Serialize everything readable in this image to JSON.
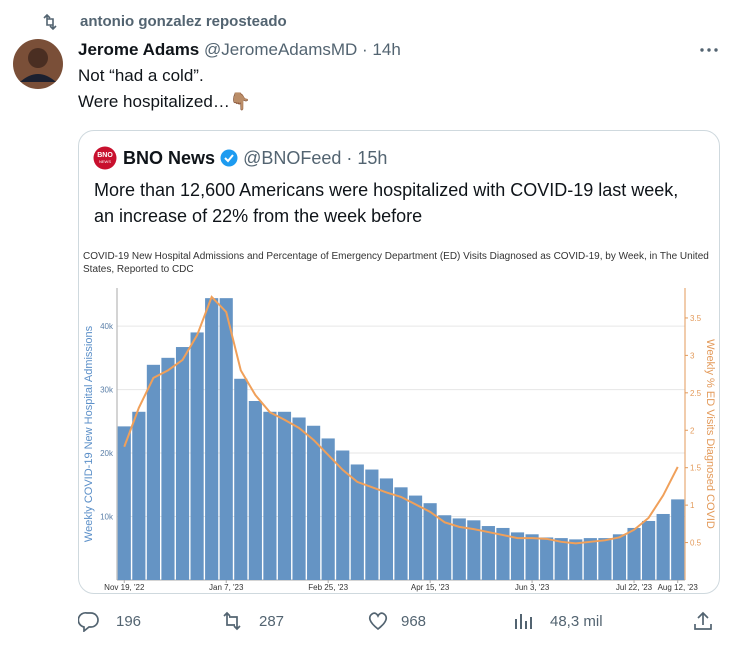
{
  "repost": {
    "text": "antonio gonzalez reposteado"
  },
  "tweet": {
    "author": "Jerome Adams",
    "handle": "@JeromeAdamsMD",
    "time": "· 14h",
    "lines": [
      "Not “had a cold”.",
      "Were hospitalized…👇🏽"
    ]
  },
  "quote": {
    "logo": [
      "BNO",
      "NEWS"
    ],
    "author": "BNO News",
    "handle": "@BNOFeed",
    "time": "· 15h",
    "text": "More than 12,600 Americans were hospitalized with COVID-19 last week, an increase of 22% from the week before"
  },
  "chart_data": {
    "type": "bar",
    "title": "COVID-19 New Hospital Admissions and Percentage of Emergency Department (ED) Visits Diagnosed as COVID-19, by Week, in The United States, Reported to CDC",
    "ylabel": "Weekly COVID-19 New Hospital Admissions",
    "y2label": "Weekly % ED Visits Diagnosed COVID",
    "categories": [
      "Nov 19, '22",
      null,
      null,
      null,
      null,
      null,
      null,
      "Jan 7, '23",
      null,
      null,
      null,
      null,
      null,
      null,
      "Feb 25, '23",
      null,
      null,
      null,
      null,
      null,
      null,
      "Apr 15, '23",
      null,
      null,
      null,
      null,
      null,
      null,
      "Jun 3, '23",
      null,
      null,
      null,
      null,
      null,
      null,
      "Jul 22, '23",
      null,
      null,
      "Aug 12, '23"
    ],
    "series": [
      {
        "type": "bar",
        "color": "#6594c4",
        "values": [
          24200,
          26500,
          33900,
          35000,
          36700,
          39000,
          44400,
          44400,
          31700,
          28200,
          26500,
          26500,
          25600,
          24300,
          22300,
          20400,
          18200,
          17400,
          16000,
          14600,
          13300,
          12100,
          10200,
          9700,
          9400,
          8500,
          8200,
          7500,
          7200,
          6700,
          6600,
          6400,
          6600,
          6600,
          7200,
          8200,
          9300,
          10400,
          12700
        ]
      },
      {
        "type": "line",
        "axis": "y2",
        "color": "#f0a05a",
        "values": [
          1.78,
          2.3,
          2.7,
          2.8,
          2.94,
          3.27,
          3.78,
          3.58,
          2.8,
          2.47,
          2.24,
          2.14,
          2.03,
          1.87,
          1.67,
          1.47,
          1.31,
          1.24,
          1.17,
          1.11,
          1.01,
          0.91,
          0.77,
          0.71,
          0.68,
          0.64,
          0.6,
          0.56,
          0.56,
          0.55,
          0.51,
          0.49,
          0.51,
          0.53,
          0.57,
          0.67,
          0.83,
          1.13,
          1.51
        ]
      }
    ],
    "ylim": [
      0,
      46000
    ],
    "yticks": [
      {
        "value": 10000,
        "label": "10k"
      },
      {
        "value": 20000,
        "label": "20k"
      },
      {
        "value": 30000,
        "label": "30k"
      },
      {
        "value": 40000,
        "label": "40k"
      }
    ],
    "y2lim": [
      0,
      3.9
    ],
    "y2ticks": [
      0.5,
      1,
      1.5,
      2,
      2.5,
      3,
      3.5
    ],
    "grid": true
  },
  "actions": {
    "replies": "196",
    "reposts": "287",
    "likes": "968",
    "views": "48,3 mil"
  }
}
